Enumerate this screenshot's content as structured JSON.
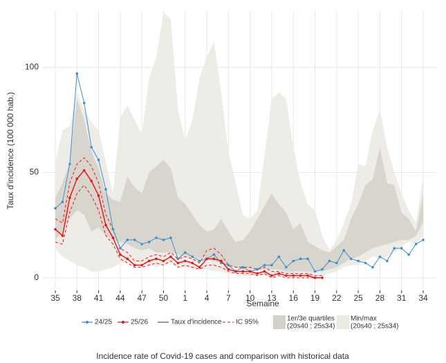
{
  "chart_data": {
    "type": "line",
    "caption": "Incidence rate of Covid-19 cases and comparison with historical data",
    "xlabel": "Semaine",
    "ylabel": "Taux d'incidence (100 000 hab.)",
    "categories": [
      "35",
      null,
      null,
      "38",
      null,
      null,
      "41",
      null,
      null,
      "44",
      null,
      null,
      "47",
      null,
      null,
      "50",
      null,
      null,
      "1",
      null,
      null,
      "4",
      null,
      null,
      "7",
      null,
      null,
      "10",
      null,
      null,
      "13",
      null,
      null,
      "16",
      null,
      null,
      "19",
      null,
      null,
      "22",
      null,
      null,
      "25",
      null,
      null,
      "28",
      null,
      null,
      "31",
      null,
      null,
      "34"
    ],
    "ylim": [
      -6,
      127
    ],
    "yticks": [
      0,
      50,
      100
    ],
    "grid": true,
    "series": [
      {
        "name": "24/25",
        "color": "#3a8fd0",
        "values": [
          33,
          36,
          54,
          97,
          83,
          62,
          56,
          42,
          23,
          14,
          18,
          18,
          16,
          17,
          19,
          18,
          19,
          9,
          12,
          10,
          8,
          9,
          11,
          7,
          6,
          3,
          5,
          3,
          4,
          6,
          6,
          10,
          5,
          8,
          9,
          9,
          3,
          4,
          8,
          7,
          13,
          9,
          8,
          7,
          5,
          10,
          8,
          14,
          14,
          11,
          16,
          18
        ]
      },
      {
        "name": "25/26",
        "color": "#e8161b",
        "values": [
          23,
          20,
          38,
          47,
          51,
          46,
          39,
          25,
          19,
          11,
          9,
          6,
          6,
          8,
          9,
          8,
          10,
          7,
          8,
          7,
          5,
          9,
          9,
          8,
          4,
          3,
          3,
          3,
          2,
          3,
          1,
          2,
          1,
          1,
          1,
          1,
          0,
          0,
          null,
          null,
          null,
          null,
          null,
          null,
          null,
          null,
          null,
          null,
          null,
          null,
          null,
          null
        ]
      }
    ],
    "line_legend": {
      "name": "Taux d'incidence",
      "color": "#333333"
    },
    "ci": {
      "name": "IC 95%",
      "color": "#e8161b",
      "upper": [
        28,
        26,
        45,
        54,
        57,
        53,
        45,
        30,
        23,
        14,
        12,
        8,
        8,
        10,
        11,
        10,
        12,
        9,
        10,
        9,
        7,
        13,
        14,
        11,
        6,
        5,
        5,
        5,
        4,
        5,
        3,
        3,
        2,
        2,
        2,
        2,
        1,
        1,
        null,
        null,
        null,
        null,
        null,
        null,
        null,
        null,
        null,
        null,
        null,
        null,
        null,
        null
      ],
      "lower": [
        17,
        16,
        31,
        40,
        44,
        39,
        32,
        20,
        16,
        9,
        7,
        5,
        5,
        6,
        7,
        6,
        8,
        5,
        6,
        5,
        4,
        6,
        6,
        5,
        3,
        2,
        2,
        2,
        1,
        2,
        0,
        1,
        0,
        0,
        0,
        0,
        0,
        0,
        null,
        null,
        null,
        null,
        null,
        null,
        null,
        null,
        null,
        null,
        null,
        null,
        null,
        null
      ]
    },
    "bands": [
      {
        "name": [
          "Min/max",
          "(20s40 ; 25s34)"
        ],
        "color": "#ebe9e2",
        "lower": [
          14,
          10,
          8,
          6,
          5,
          3,
          3,
          4,
          5,
          7,
          8,
          6,
          7,
          6,
          5,
          6,
          7,
          5,
          5,
          4,
          4,
          4,
          3,
          3,
          2,
          2,
          1,
          1,
          1,
          1,
          1,
          1,
          1,
          1,
          1,
          1,
          1,
          1,
          2,
          3,
          5,
          6,
          6,
          8,
          10,
          9,
          10,
          12,
          15,
          17,
          16,
          20
        ],
        "upper": [
          55,
          70,
          72,
          88,
          80,
          74,
          70,
          55,
          40,
          76,
          82,
          75,
          68,
          95,
          105,
          126,
          123,
          80,
          65,
          75,
          95,
          105,
          112,
          88,
          60,
          45,
          30,
          28,
          32,
          58,
          85,
          88,
          85,
          62,
          45,
          35,
          32,
          20,
          13,
          18,
          26,
          35,
          54,
          53,
          70,
          80,
          62,
          50,
          40,
          32,
          26,
          48
        ]
      },
      {
        "name": [
          "1er/3e quartiles",
          "(20s40 ; 25s34)"
        ],
        "color": "#d4d1c8",
        "lower": [
          18,
          22,
          28,
          32,
          30,
          22,
          24,
          20,
          18,
          17,
          16,
          14,
          13,
          14,
          12,
          12,
          12,
          11,
          10,
          10,
          9,
          9,
          8,
          7,
          6,
          5,
          4,
          4,
          4,
          4,
          4,
          4,
          3,
          3,
          3,
          3,
          3,
          3,
          4,
          5,
          7,
          9,
          10,
          12,
          14,
          15,
          16,
          17,
          18,
          18,
          20,
          26
        ],
        "upper": [
          38,
          45,
          55,
          85,
          75,
          60,
          52,
          40,
          37,
          36,
          48,
          43,
          40,
          50,
          53,
          56,
          52,
          38,
          35,
          30,
          25,
          22,
          23,
          28,
          22,
          17,
          18,
          22,
          28,
          34,
          40,
          35,
          31,
          23,
          26,
          17,
          15,
          13,
          12,
          15,
          18,
          28,
          35,
          44,
          47,
          62,
          45,
          44,
          31,
          28,
          22,
          40
        ]
      }
    ]
  }
}
